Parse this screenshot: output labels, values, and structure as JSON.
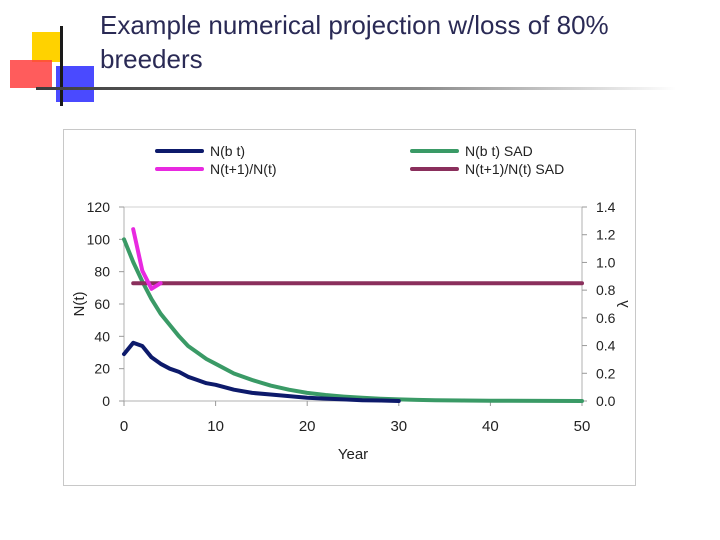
{
  "slide": {
    "title": "Example numerical projection w/loss of 80% breeders"
  },
  "logo": {
    "colors": {
      "yellow": "#ffd200",
      "red": "#ff3b3b",
      "blue": "#2a2aff",
      "bar": "#1a1a1a"
    }
  },
  "chart_data": {
    "type": "line",
    "xlabel": "Year",
    "ylabel": "N(t)",
    "y2label": "λ",
    "xlim": [
      0,
      50
    ],
    "ylim": [
      0,
      120
    ],
    "y2lim": [
      0.0,
      1.4
    ],
    "xticks": [
      "0",
      "10",
      "20",
      "30",
      "40",
      "50"
    ],
    "yticks": [
      "0",
      "20",
      "40",
      "60",
      "80",
      "100",
      "120"
    ],
    "y2ticks": [
      "0.0",
      "0.2",
      "0.4",
      "0.6",
      "0.8",
      "1.0",
      "1.2",
      "1.4"
    ],
    "grid": false,
    "legend_position": "top",
    "series": [
      {
        "name": "N(b t)",
        "axis": "left",
        "color": "#0d1a6b",
        "x": [
          0,
          1,
          2,
          3,
          4,
          5,
          6,
          7,
          8,
          9,
          10,
          12,
          14,
          16,
          18,
          20,
          22,
          24,
          26,
          28,
          30
        ],
        "y": [
          29,
          36,
          34,
          27,
          23,
          20,
          18,
          15,
          13,
          11,
          10,
          7,
          5,
          4,
          3,
          2,
          1.5,
          1,
          0.5,
          0.3,
          0
        ]
      },
      {
        "name": "N(b t) SAD",
        "axis": "left",
        "color": "#3a9a66",
        "x": [
          0,
          1,
          2,
          3,
          4,
          5,
          6,
          7,
          8,
          9,
          10,
          12,
          14,
          16,
          18,
          20,
          22,
          24,
          26,
          28,
          30,
          32,
          34,
          40,
          50
        ],
        "y": [
          100,
          86,
          74,
          63,
          54,
          47,
          40,
          34,
          30,
          26,
          23,
          17,
          13,
          9.5,
          7,
          5,
          3.7,
          2.7,
          2,
          1.4,
          1,
          0.7,
          0.5,
          0.2,
          0
        ]
      },
      {
        "name": "N(t+1)/N(t)",
        "axis": "right",
        "color": "#e829e0",
        "x": [
          1,
          2,
          3,
          4
        ],
        "y": [
          1.24,
          0.94,
          0.81,
          0.85
        ]
      },
      {
        "name": "N(t+1)/N(t) SAD",
        "axis": "right",
        "color": "#8a2f5c",
        "x": [
          1,
          50
        ],
        "y": [
          0.85,
          0.85
        ]
      }
    ]
  }
}
